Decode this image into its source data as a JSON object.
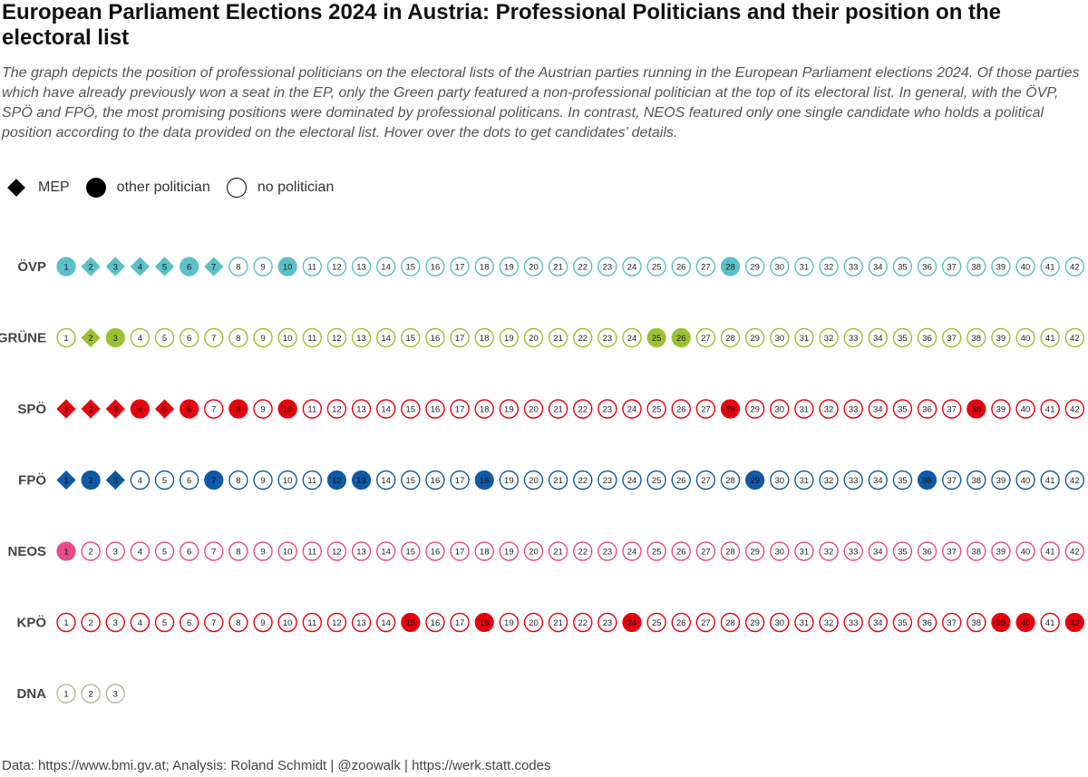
{
  "chart_data": {
    "type": "scatter",
    "title": "European Parliament Elections 2024 in Austria: Professional Politicians and their position on the electoral list",
    "subtitle": "The graph depicts the position of professional politicians on the electoral lists of the Austrian parties running in the European Parliament elections 2024. Of those parties which have already previously won a seat in the EP, only the Green party featured a non-professional politician at the top of its electoral list. In general, with the ÖVP, SPÖ and FPÖ, the most promising positions were dominated by professional politicans. In contrast, NEOS featured only one single candidate who holds a political position according to the data provided on the electoral list. Hover over the dots to get candidates’ details.",
    "legend": [
      {
        "key": "mep",
        "label": "MEP",
        "shape": "diamond"
      },
      {
        "key": "other",
        "label": "other politician",
        "shape": "filled-circle"
      },
      {
        "key": "none",
        "label": "no politician",
        "shape": "empty-circle"
      }
    ],
    "caption": "Data: https://www.bmi.gv.at; Analysis: Roland Schmidt | @zoowalk | https://werk.statt.codes",
    "parties": [
      {
        "name": "ÖVP",
        "color": "#5bc0c8",
        "list_length": 42,
        "mep": [
          2,
          3,
          5,
          7,
          4
        ],
        "other": [
          1,
          6,
          10,
          28
        ]
      },
      {
        "name": "GRÜNE",
        "color": "#9ac131",
        "list_length": 42,
        "mep": [
          2
        ],
        "other": [
          3,
          25,
          26
        ]
      },
      {
        "name": "SPÖ",
        "color": "#e8000f",
        "list_length": 42,
        "mep": [
          1,
          2,
          3,
          5
        ],
        "other": [
          4,
          6,
          8,
          10,
          28,
          38
        ]
      },
      {
        "name": "FPÖ",
        "color": "#0e5aa7",
        "list_length": 42,
        "mep": [
          1,
          3
        ],
        "other": [
          2,
          7,
          12,
          13,
          18,
          29,
          36
        ]
      },
      {
        "name": "NEOS",
        "color": "#e84b8a",
        "list_length": 42,
        "mep": [],
        "other": [
          1
        ]
      },
      {
        "name": "KPÖ",
        "color": "#e8000f",
        "list_length": 42,
        "mep": [],
        "other": [
          15,
          18,
          24,
          39,
          40,
          42
        ]
      },
      {
        "name": "DNA",
        "color": "#b8b89a",
        "list_length": 3,
        "mep": [],
        "other": []
      }
    ]
  }
}
